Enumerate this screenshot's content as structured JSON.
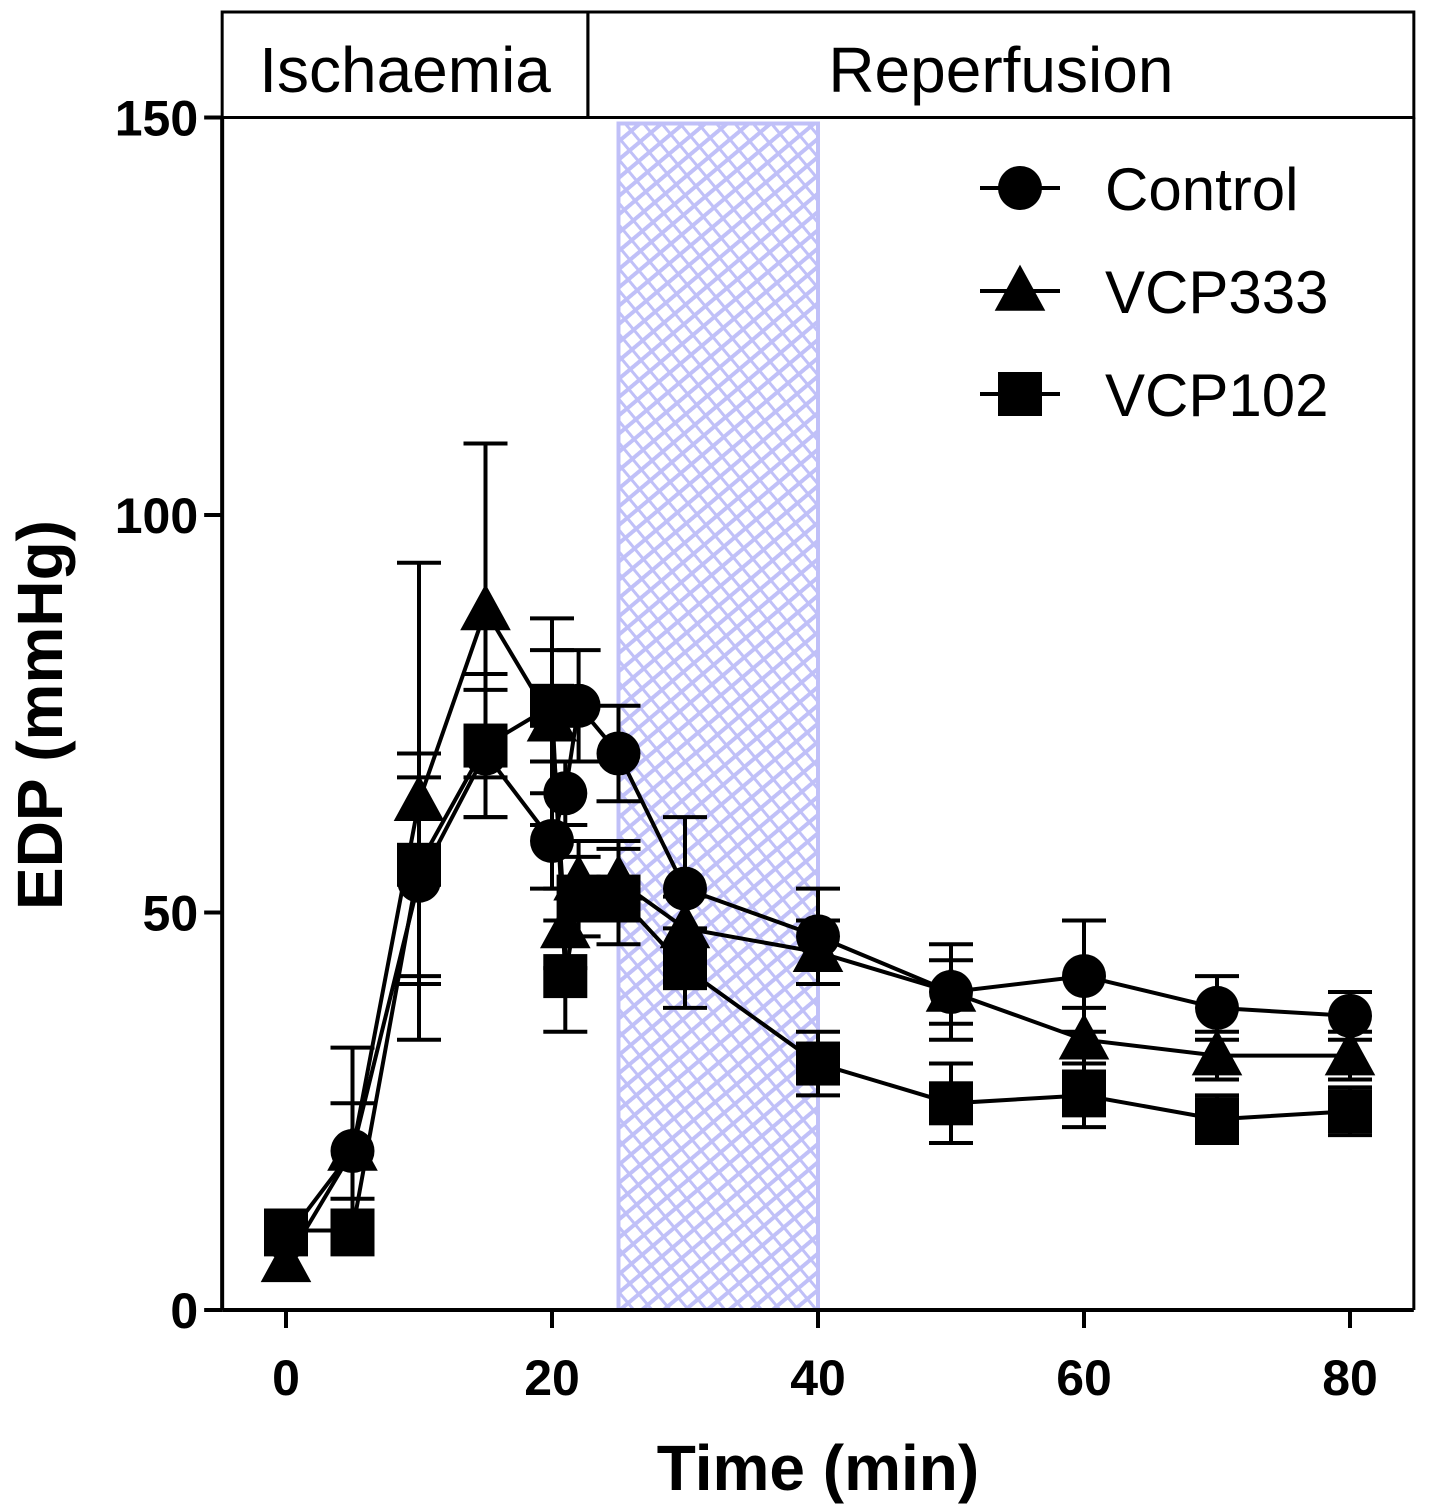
{
  "chart_data": {
    "type": "line",
    "xlabel": "Time (min)",
    "ylabel": "EDP (mmHg)",
    "xlim": [
      -4.8,
      84.8
    ],
    "ylim": [
      0,
      150
    ],
    "xticks": [
      0,
      20,
      40,
      60,
      80
    ],
    "yticks": [
      0,
      50,
      100,
      150
    ],
    "phases": [
      {
        "label": "Ischaemia",
        "from": -4.8,
        "to": 22.7
      },
      {
        "label": "Reperfusion",
        "from": 22.7,
        "to": 84.8
      }
    ],
    "shaded_region": {
      "from": 25,
      "to": 40,
      "color": "#c0c0f8"
    },
    "legend_position": "top-right",
    "series": [
      {
        "name": "Control",
        "marker": "circle",
        "x": [
          0,
          5,
          10,
          15,
          20,
          21,
          22,
          25,
          30,
          40,
          50,
          60,
          70,
          80
        ],
        "y": [
          9,
          20,
          54,
          70,
          59,
          65,
          76,
          70,
          53,
          47,
          40,
          42,
          38,
          37
        ],
        "err": [
          2,
          13,
          13,
          8,
          6,
          4,
          7,
          6,
          9,
          6,
          6,
          7,
          4,
          3
        ]
      },
      {
        "name": "VCP333",
        "marker": "triangle",
        "x": [
          0,
          5,
          10,
          15,
          20,
          21,
          22,
          25,
          30,
          40,
          50,
          60,
          70,
          80
        ],
        "y": [
          6,
          20,
          64,
          88,
          74,
          48,
          54,
          54,
          48,
          45,
          40,
          34,
          32,
          32
        ],
        "err": [
          2,
          6,
          30,
          21,
          13,
          5,
          5,
          5,
          4,
          4,
          4,
          4,
          3,
          3
        ]
      },
      {
        "name": "VCP102",
        "marker": "square",
        "x": [
          0,
          5,
          10,
          15,
          20,
          21,
          22,
          25,
          30,
          40,
          50,
          60,
          70,
          80
        ],
        "y": [
          10,
          10,
          56,
          71,
          76,
          42,
          52,
          52,
          43,
          31,
          26,
          27,
          24,
          25
        ],
        "err": [
          2,
          2,
          14,
          9,
          7,
          7,
          5,
          6,
          5,
          4,
          5,
          4,
          3,
          3
        ]
      }
    ]
  }
}
